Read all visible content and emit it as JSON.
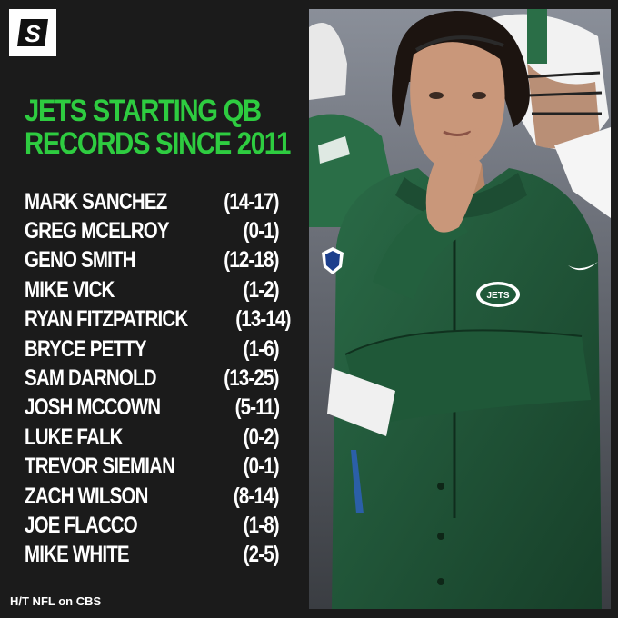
{
  "brand": {
    "logo_letter": "S"
  },
  "title": {
    "line1": "JETS STARTING QB",
    "line2": "RECORDS SINCE 2011"
  },
  "quarterbacks": [
    {
      "name": "MARK SANCHEZ",
      "record": "(14-17)"
    },
    {
      "name": "GREG MCELROY",
      "record": "(0-1)"
    },
    {
      "name": "GENO SMITH",
      "record": "(12-18)"
    },
    {
      "name": "MIKE VICK",
      "record": "(1-2)"
    },
    {
      "name": "RYAN FITZPATRICK",
      "record": "(13-14)"
    },
    {
      "name": "BRYCE PETTY",
      "record": "(1-6)"
    },
    {
      "name": "SAM DARNOLD",
      "record": "(13-25)"
    },
    {
      "name": "JOSH MCCOWN",
      "record": "(5-11)"
    },
    {
      "name": "LUKE FALK",
      "record": "(0-2)"
    },
    {
      "name": "TREVOR SIEMIAN",
      "record": "(0-1)"
    },
    {
      "name": "ZACH WILSON",
      "record": "(8-14)"
    },
    {
      "name": "JOE FLACCO",
      "record": "(1-8)"
    },
    {
      "name": "MIKE WHITE",
      "record": "(2-5)"
    }
  ],
  "photo": {
    "jacket_logo_text": "JETS"
  },
  "credit": "H/T NFL on CBS",
  "colors": {
    "background": "#1b1b1b",
    "title": "#2ecc40",
    "jacket": "#1f5a3a",
    "text": "#ffffff"
  }
}
